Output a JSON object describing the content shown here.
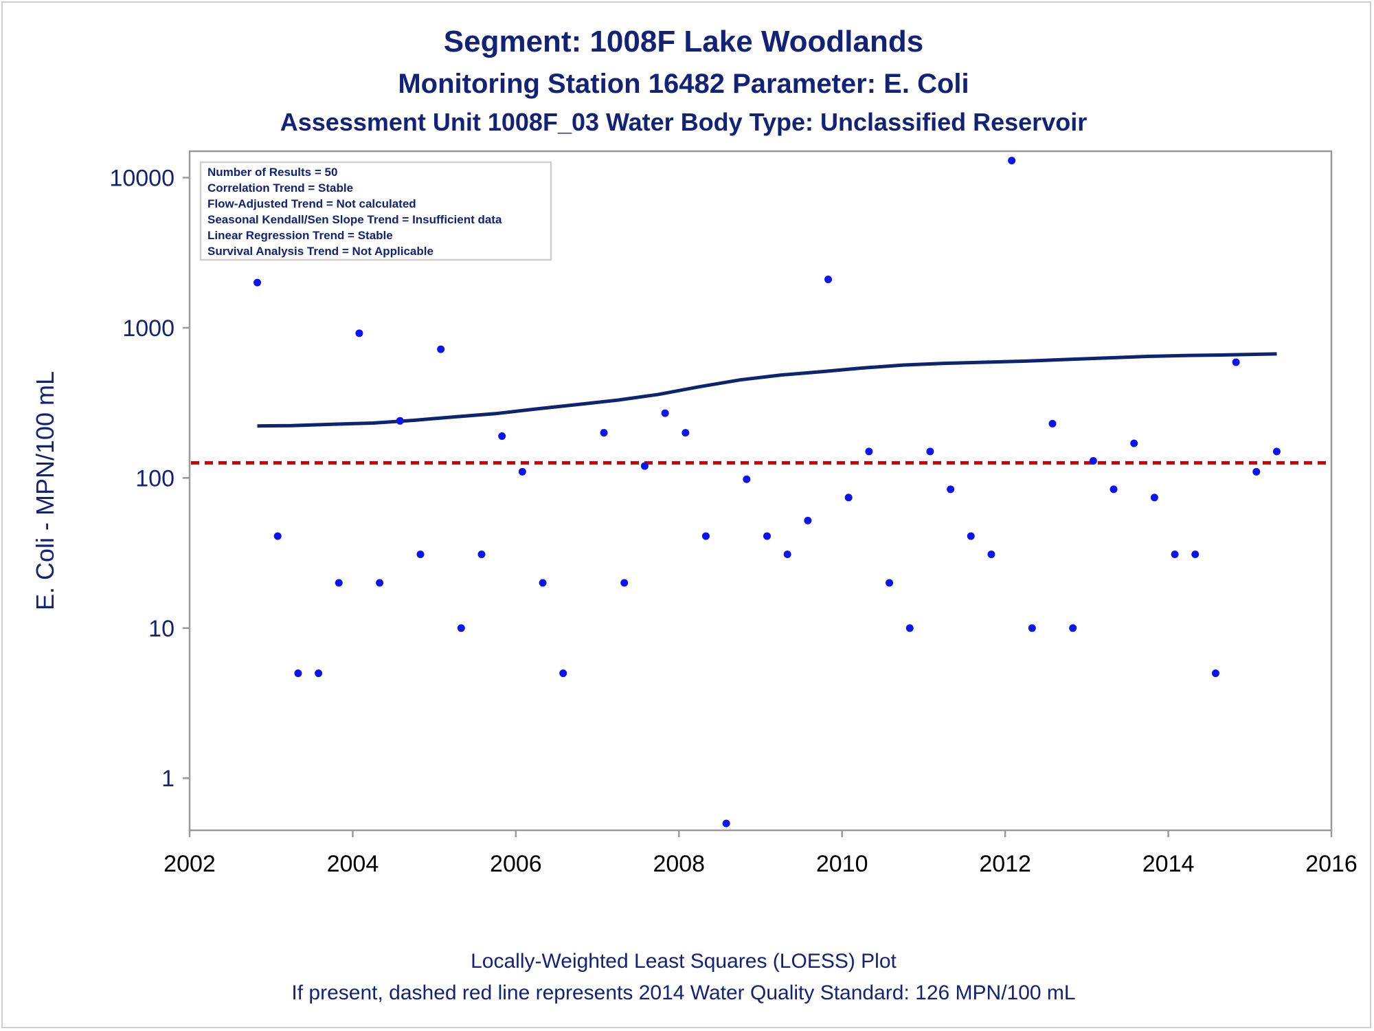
{
  "titles": {
    "line1": "Segment: 1008F  Lake Woodlands",
    "line2": "Monitoring Station 16482 Parameter: E. Coli",
    "line3": "Assessment Unit 1008F_03   Water Body Type: Unclassified Reservoir"
  },
  "stats_box": [
    "Number of Results = 50",
    "Correlation Trend = Stable",
    "Flow-Adjusted Trend = Not calculated",
    "Seasonal Kendall/Sen Slope Trend = Insufficient data",
    "Linear Regression Trend = Stable",
    "Survival Analysis Trend = Not Applicable"
  ],
  "footnotes": {
    "line1": "Locally-Weighted Least Squares (LOESS) Plot",
    "line2": "If present, dashed red line represents 2014 Water Quality Standard: 126 MPN/100 mL"
  },
  "colors": {
    "points": "#0a14f0",
    "loess": "#0d2470",
    "standard_line": "#cc0000",
    "text": "#112277",
    "axis": "#9a9a9a"
  },
  "chart_data": {
    "type": "scatter",
    "ylabel": "E. Coli - MPN/100 mL",
    "xlabel": "",
    "y_scale": "log",
    "xlim": [
      2002,
      2016
    ],
    "ylim": [
      0.45,
      15000
    ],
    "x_ticks": [
      "2002",
      "2004",
      "2006",
      "2008",
      "2010",
      "2012",
      "2014",
      "2016"
    ],
    "y_ticks": [
      "1",
      "10",
      "100",
      "1000",
      "10000"
    ],
    "standard": 126,
    "points": [
      [
        2002.83,
        2000
      ],
      [
        2003.08,
        41
      ],
      [
        2003.33,
        5
      ],
      [
        2003.58,
        5
      ],
      [
        2003.83,
        20
      ],
      [
        2004.08,
        920
      ],
      [
        2004.33,
        20
      ],
      [
        2004.58,
        240
      ],
      [
        2004.83,
        31
      ],
      [
        2005.08,
        720
      ],
      [
        2005.33,
        10
      ],
      [
        2005.58,
        31
      ],
      [
        2005.83,
        190
      ],
      [
        2006.08,
        110
      ],
      [
        2006.33,
        20
      ],
      [
        2006.58,
        5
      ],
      [
        2007.08,
        200
      ],
      [
        2007.33,
        20
      ],
      [
        2007.58,
        120
      ],
      [
        2007.83,
        270
      ],
      [
        2008.08,
        200
      ],
      [
        2008.33,
        41
      ],
      [
        2008.58,
        0.5
      ],
      [
        2008.83,
        98
      ],
      [
        2009.08,
        41
      ],
      [
        2009.33,
        31
      ],
      [
        2009.58,
        52
      ],
      [
        2009.83,
        2100
      ],
      [
        2010.08,
        74
      ],
      [
        2010.33,
        150
      ],
      [
        2010.58,
        20
      ],
      [
        2010.83,
        10
      ],
      [
        2011.08,
        150
      ],
      [
        2011.33,
        84
      ],
      [
        2011.58,
        41
      ],
      [
        2011.83,
        31
      ],
      [
        2012.08,
        13000
      ],
      [
        2012.33,
        10
      ],
      [
        2012.58,
        230
      ],
      [
        2012.83,
        10
      ],
      [
        2013.08,
        130
      ],
      [
        2013.33,
        84
      ],
      [
        2013.58,
        170
      ],
      [
        2013.83,
        74
      ],
      [
        2014.08,
        31
      ],
      [
        2014.33,
        31
      ],
      [
        2014.58,
        5
      ],
      [
        2014.83,
        590
      ],
      [
        2015.08,
        110
      ],
      [
        2015.33,
        150
      ]
    ],
    "loess": [
      [
        2002.83,
        222
      ],
      [
        2003.25,
        223
      ],
      [
        2003.75,
        228
      ],
      [
        2004.25,
        232
      ],
      [
        2004.75,
        242
      ],
      [
        2005.25,
        255
      ],
      [
        2005.75,
        268
      ],
      [
        2006.25,
        288
      ],
      [
        2006.75,
        308
      ],
      [
        2007.25,
        330
      ],
      [
        2007.75,
        360
      ],
      [
        2008.25,
        405
      ],
      [
        2008.75,
        450
      ],
      [
        2009.25,
        485
      ],
      [
        2009.75,
        510
      ],
      [
        2010.25,
        540
      ],
      [
        2010.75,
        565
      ],
      [
        2011.25,
        580
      ],
      [
        2011.75,
        590
      ],
      [
        2012.25,
        600
      ],
      [
        2012.75,
        615
      ],
      [
        2013.25,
        630
      ],
      [
        2013.75,
        645
      ],
      [
        2014.25,
        655
      ],
      [
        2014.75,
        660
      ],
      [
        2015.33,
        670
      ]
    ]
  }
}
